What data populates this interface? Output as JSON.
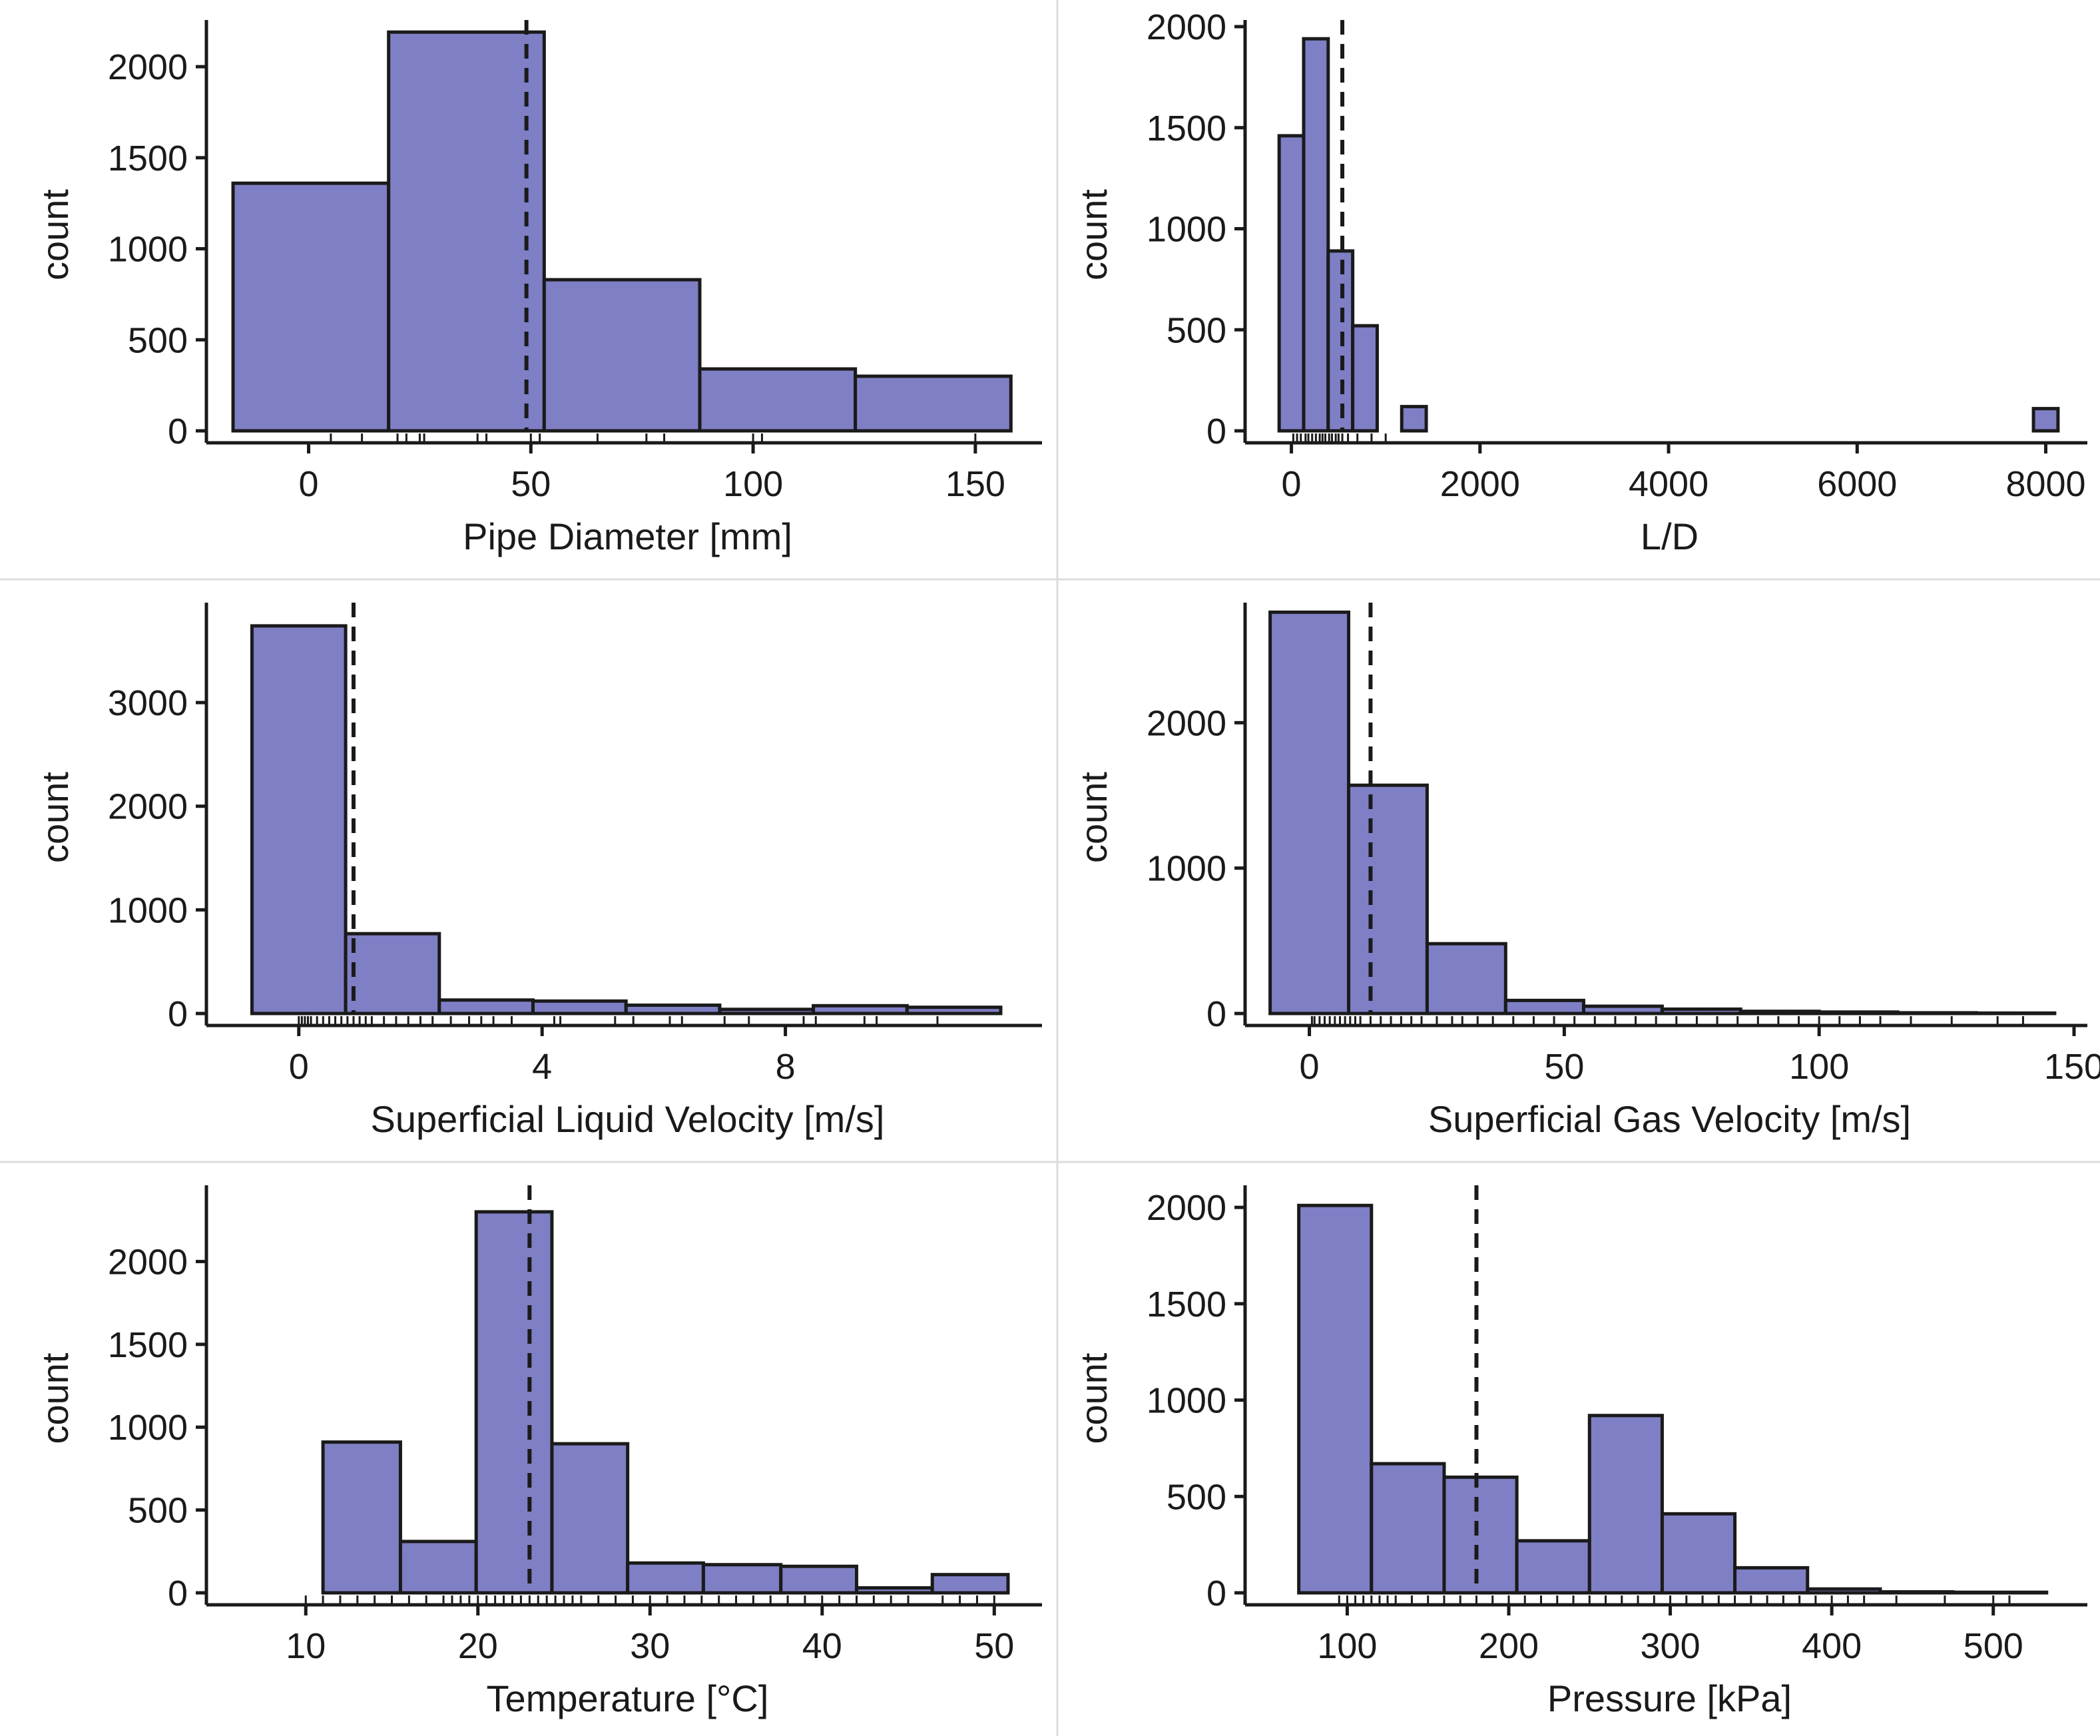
{
  "colors": {
    "bar_fill": "#7f7fc5",
    "bar_stroke": "#1a1a1a",
    "ink": "#1a1a1a",
    "separator": "#dcdcdc"
  },
  "chart_data": [
    {
      "id": "pipe-diameter",
      "type": "bar",
      "xlabel": "Pipe Diameter [mm]",
      "ylabel": "count",
      "xlim": [
        -20,
        162
      ],
      "ylim": [
        0,
        2220
      ],
      "xticks": [
        0,
        50,
        100,
        150
      ],
      "yticks": [
        0,
        500,
        1000,
        1500,
        2000
      ],
      "bins": [
        {
          "x0": -17,
          "x1": 18,
          "count": 1360
        },
        {
          "x0": 18,
          "x1": 53,
          "count": 2190
        },
        {
          "x0": 53,
          "x1": 88,
          "count": 830
        },
        {
          "x0": 88,
          "x1": 123,
          "count": 340
        },
        {
          "x0": 123,
          "x1": 158,
          "count": 300
        }
      ],
      "mean": 49,
      "rug": [
        5,
        12,
        20,
        22,
        25,
        26,
        38,
        40,
        50,
        52,
        65,
        76,
        80,
        100,
        102,
        150
      ]
    },
    {
      "id": "length-over-diameter",
      "type": "bar",
      "xlabel": "L/D",
      "ylabel": "count",
      "xlim": [
        -350,
        8300
      ],
      "ylim": [
        0,
        2000
      ],
      "xticks": [
        0,
        2000,
        4000,
        6000,
        8000
      ],
      "yticks": [
        0,
        500,
        1000,
        1500,
        2000
      ],
      "bins": [
        {
          "x0": -130,
          "x1": 130,
          "count": 1460
        },
        {
          "x0": 130,
          "x1": 390,
          "count": 1940
        },
        {
          "x0": 390,
          "x1": 650,
          "count": 890
        },
        {
          "x0": 650,
          "x1": 910,
          "count": 520
        },
        {
          "x0": 910,
          "x1": 1170,
          "count": 0
        },
        {
          "x0": 1170,
          "x1": 1430,
          "count": 120
        },
        {
          "x0": 7870,
          "x1": 8130,
          "count": 110
        }
      ],
      "mean": 540,
      "rug": [
        20,
        60,
        100,
        150,
        180,
        220,
        260,
        300,
        330,
        360,
        400,
        430,
        470,
        500,
        540,
        600,
        700,
        850,
        1000
      ]
    },
    {
      "id": "superficial-liquid-velocity",
      "type": "bar",
      "xlabel": "Superficial Liquid Velocity [m/s]",
      "ylabel": "count",
      "xlim": [
        -1.3,
        12
      ],
      "ylim": [
        0,
        3900
      ],
      "xticks": [
        0,
        4,
        8
      ],
      "yticks": [
        0,
        1000,
        2000,
        3000
      ],
      "bins": [
        {
          "x0": -0.77,
          "x1": 0.77,
          "count": 3740
        },
        {
          "x0": 0.77,
          "x1": 2.31,
          "count": 770
        },
        {
          "x0": 2.31,
          "x1": 3.85,
          "count": 130
        },
        {
          "x0": 3.85,
          "x1": 5.38,
          "count": 120
        },
        {
          "x0": 5.38,
          "x1": 6.92,
          "count": 80
        },
        {
          "x0": 6.92,
          "x1": 8.46,
          "count": 40
        },
        {
          "x0": 8.46,
          "x1": 10.0,
          "count": 75
        },
        {
          "x0": 10.0,
          "x1": 11.54,
          "count": 60
        }
      ],
      "mean": 0.9,
      "rug": [
        0.0,
        0.05,
        0.1,
        0.15,
        0.2,
        0.3,
        0.4,
        0.5,
        0.6,
        0.7,
        0.8,
        0.9,
        1.0,
        1.1,
        1.2,
        1.4,
        1.6,
        1.8,
        2.0,
        2.2,
        2.5,
        2.8,
        3.0,
        3.2,
        3.5,
        4.2,
        4.3,
        5.2,
        5.5,
        6.1,
        6.3,
        7.0,
        7.4,
        8.3,
        8.5,
        9.3,
        9.5,
        10.5
      ]
    },
    {
      "id": "superficial-gas-velocity",
      "type": "bar",
      "xlabel": "Superficial Gas Velocity [m/s]",
      "ylabel": "count",
      "xlim": [
        -10,
        150
      ],
      "ylim": [
        0,
        2780
      ],
      "xticks": [
        0,
        50,
        100,
        150
      ],
      "yticks": [
        0,
        1000,
        2000
      ],
      "bins": [
        {
          "x0": -7.7,
          "x1": 7.7,
          "count": 2760
        },
        {
          "x0": 7.7,
          "x1": 23.1,
          "count": 1570
        },
        {
          "x0": 23.1,
          "x1": 38.5,
          "count": 480
        },
        {
          "x0": 38.5,
          "x1": 53.8,
          "count": 90
        },
        {
          "x0": 53.8,
          "x1": 69.2,
          "count": 50
        },
        {
          "x0": 69.2,
          "x1": 84.6,
          "count": 30
        },
        {
          "x0": 84.6,
          "x1": 100.0,
          "count": 15
        },
        {
          "x0": 100.0,
          "x1": 115.4,
          "count": 10
        },
        {
          "x0": 115.4,
          "x1": 130.8,
          "count": 5
        },
        {
          "x0": 130.8,
          "x1": 146.2,
          "count": 3
        }
      ],
      "mean": 12,
      "rug": [
        0.5,
        1,
        2,
        3,
        4,
        5,
        6,
        7,
        8,
        9,
        10,
        12,
        14,
        16,
        18,
        20,
        22,
        25,
        28,
        30,
        33,
        36,
        40,
        44,
        48,
        52,
        56,
        60,
        64,
        68,
        72,
        76,
        80,
        84,
        88,
        92,
        96,
        100,
        104,
        108,
        112,
        118,
        126,
        135,
        140
      ]
    },
    {
      "id": "temperature",
      "type": "bar",
      "xlabel": "Temperature [°C]",
      "ylabel": "count",
      "xlim": [
        5,
        52
      ],
      "ylim": [
        0,
        2420
      ],
      "xticks": [
        10,
        20,
        30,
        40,
        50
      ],
      "yticks": [
        0,
        500,
        1000,
        1500,
        2000
      ],
      "bins": [
        {
          "x0": 6.6,
          "x1": 11.0,
          "count": 0
        },
        {
          "x0": 11.0,
          "x1": 15.5,
          "count": 910
        },
        {
          "x0": 15.5,
          "x1": 19.9,
          "count": 310
        },
        {
          "x0": 19.9,
          "x1": 24.3,
          "count": 2300
        },
        {
          "x0": 24.3,
          "x1": 28.7,
          "count": 900
        },
        {
          "x0": 28.7,
          "x1": 33.1,
          "count": 180
        },
        {
          "x0": 33.1,
          "x1": 37.6,
          "count": 170
        },
        {
          "x0": 37.6,
          "x1": 42.0,
          "count": 160
        },
        {
          "x0": 42.0,
          "x1": 46.4,
          "count": 30
        },
        {
          "x0": 46.4,
          "x1": 50.8,
          "count": 110
        }
      ],
      "mean": 23,
      "rug": [
        10,
        11,
        12,
        13,
        14,
        15,
        16,
        17,
        18,
        18.5,
        19,
        19.5,
        20,
        20.5,
        21,
        21.5,
        22,
        22.5,
        23,
        23.5,
        24,
        24.5,
        25,
        25.5,
        26,
        27,
        28,
        29,
        30,
        31,
        32,
        33,
        34,
        35,
        36,
        37,
        38,
        39,
        40,
        41,
        42,
        43,
        44,
        45,
        47,
        48,
        49,
        50
      ]
    },
    {
      "id": "pressure",
      "type": "bar",
      "xlabel": "Pressure [kPa]",
      "ylabel": "count",
      "xlim": [
        45,
        550
      ],
      "ylim": [
        0,
        2080
      ],
      "xticks": [
        100,
        200,
        300,
        400,
        500
      ],
      "yticks": [
        0,
        500,
        1000,
        1500,
        2000
      ],
      "bins": [
        {
          "x0": 70,
          "x1": 115,
          "count": 2010
        },
        {
          "x0": 115,
          "x1": 160,
          "count": 670
        },
        {
          "x0": 160,
          "x1": 205,
          "count": 600
        },
        {
          "x0": 205,
          "x1": 250,
          "count": 270
        },
        {
          "x0": 250,
          "x1": 295,
          "count": 920
        },
        {
          "x0": 295,
          "x1": 340,
          "count": 410
        },
        {
          "x0": 340,
          "x1": 385,
          "count": 130
        },
        {
          "x0": 385,
          "x1": 430,
          "count": 20
        },
        {
          "x0": 430,
          "x1": 475,
          "count": 5
        },
        {
          "x0": 475,
          "x1": 533,
          "count": 3
        }
      ],
      "mean": 180,
      "rug": [
        95,
        100,
        105,
        110,
        115,
        120,
        125,
        130,
        140,
        150,
        160,
        170,
        180,
        190,
        200,
        210,
        220,
        230,
        240,
        250,
        260,
        270,
        280,
        290,
        300,
        310,
        320,
        330,
        340,
        350,
        360,
        370,
        380,
        390,
        400,
        410,
        420,
        440,
        470,
        500,
        510
      ]
    }
  ]
}
